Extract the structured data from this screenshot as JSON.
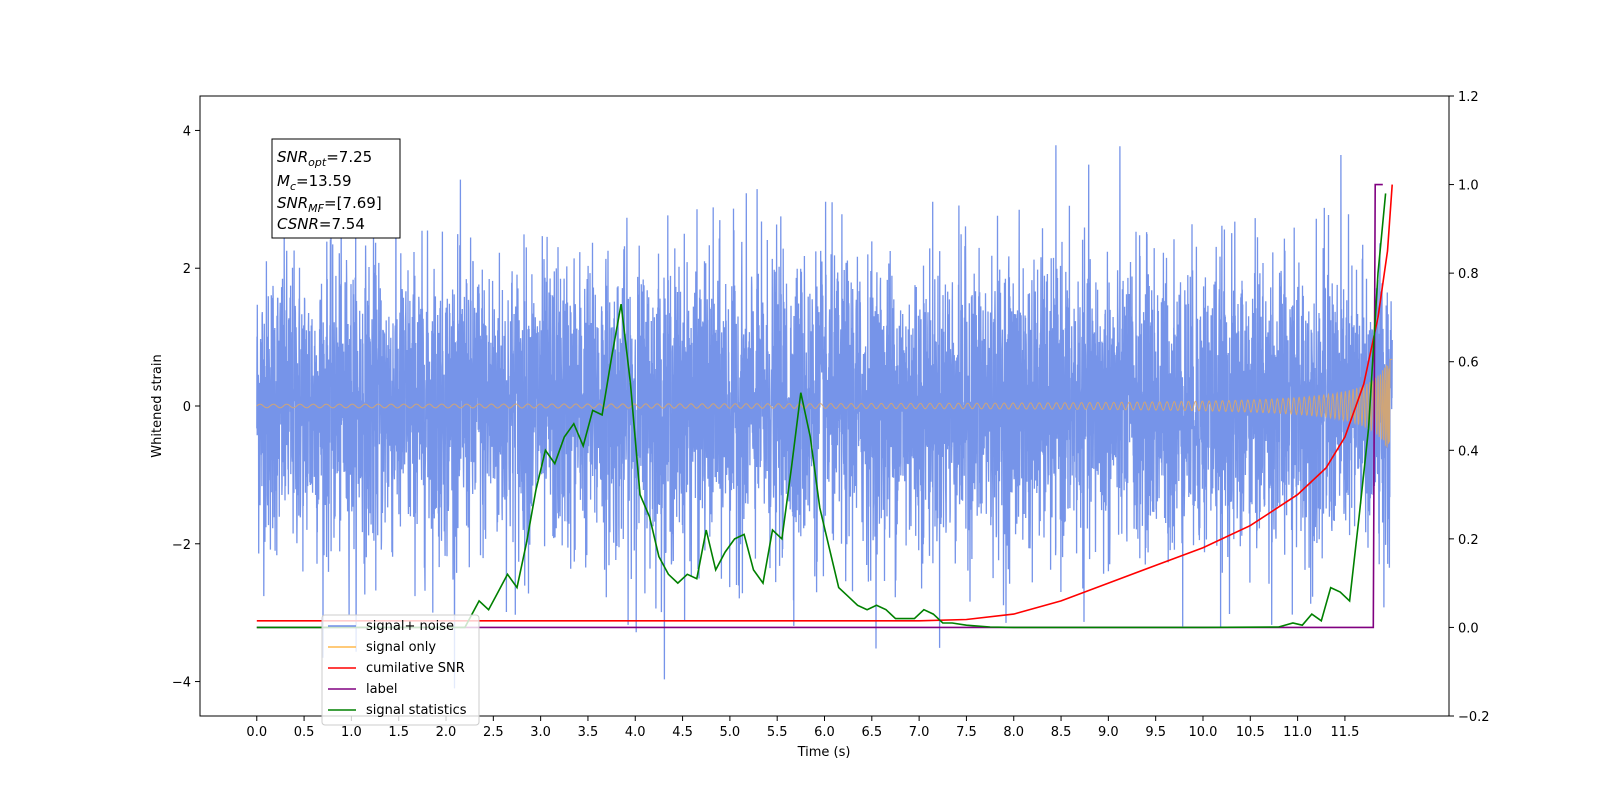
{
  "chart_data": {
    "type": "line",
    "xlabel": "Time (s)",
    "ylabel": "Whitened strain",
    "xlim": [
      -0.6,
      12.6
    ],
    "ylim_left": [
      -4.5,
      4.5
    ],
    "ylim_right": [
      -0.2,
      1.2
    ],
    "x_ticks": [
      "0.0",
      "0.5",
      "1.0",
      "1.5",
      "2.0",
      "2.5",
      "3.0",
      "3.5",
      "4.0",
      "4.5",
      "5.0",
      "5.5",
      "6.0",
      "6.5",
      "7.0",
      "7.5",
      "8.0",
      "8.5",
      "9.0",
      "9.5",
      "10.0",
      "10.5",
      "11.0",
      "11.5"
    ],
    "y_ticks_left": [
      "4",
      "2",
      "0",
      "−2",
      "−4"
    ],
    "y_ticks_right": [
      "1.2",
      "1.0",
      "0.8",
      "0.6",
      "0.4",
      "0.2",
      "0.0",
      "−0.2"
    ],
    "grid": false,
    "legend_position": "lower-left",
    "series": [
      {
        "name": "signal+ noise",
        "axis": "left",
        "color": "#6f8ee8",
        "description_range": [
          -3.5,
          3.5
        ]
      },
      {
        "name": "signal only",
        "axis": "left",
        "color": "#d9a66b"
      },
      {
        "name": "cumilative SNR",
        "axis": "right",
        "color": "#ff0000",
        "x": [
          0.0,
          1.0,
          2.0,
          3.0,
          4.0,
          5.0,
          6.0,
          7.0,
          7.5,
          8.0,
          8.5,
          9.0,
          9.5,
          10.0,
          10.5,
          11.0,
          11.3,
          11.5,
          11.7,
          11.85,
          11.95,
          12.0
        ],
        "y": [
          0.015,
          0.015,
          0.015,
          0.015,
          0.015,
          0.015,
          0.015,
          0.015,
          0.018,
          0.03,
          0.06,
          0.1,
          0.14,
          0.18,
          0.23,
          0.3,
          0.36,
          0.43,
          0.55,
          0.7,
          0.85,
          1.0
        ]
      },
      {
        "name": "label",
        "axis": "right",
        "color": "#800080",
        "x": [
          0.0,
          11.8,
          11.82,
          11.9
        ],
        "y": [
          0.0,
          0.0,
          1.0,
          1.0
        ]
      },
      {
        "name": "signal statistics",
        "axis": "right",
        "color": "#008000",
        "x": [
          0.0,
          2.2,
          2.35,
          2.45,
          2.55,
          2.65,
          2.75,
          2.85,
          2.95,
          3.05,
          3.15,
          3.25,
          3.35,
          3.45,
          3.55,
          3.65,
          3.75,
          3.85,
          3.95,
          4.05,
          4.15,
          4.25,
          4.35,
          4.45,
          4.55,
          4.65,
          4.75,
          4.85,
          4.95,
          5.05,
          5.15,
          5.25,
          5.35,
          5.45,
          5.55,
          5.65,
          5.75,
          5.85,
          5.95,
          6.05,
          6.15,
          6.25,
          6.35,
          6.45,
          6.55,
          6.65,
          6.75,
          6.85,
          6.95,
          7.05,
          7.15,
          7.25,
          7.35,
          7.5,
          7.75,
          8.0,
          9.0,
          10.0,
          10.8,
          10.95,
          11.05,
          11.15,
          11.25,
          11.35,
          11.45,
          11.55,
          11.65,
          11.75,
          11.85,
          11.93
        ],
        "y": [
          0.0,
          0.0,
          0.06,
          0.04,
          0.08,
          0.12,
          0.09,
          0.19,
          0.31,
          0.4,
          0.37,
          0.43,
          0.46,
          0.41,
          0.49,
          0.48,
          0.61,
          0.73,
          0.55,
          0.3,
          0.25,
          0.16,
          0.12,
          0.1,
          0.12,
          0.11,
          0.22,
          0.13,
          0.17,
          0.2,
          0.21,
          0.13,
          0.1,
          0.22,
          0.2,
          0.36,
          0.53,
          0.43,
          0.27,
          0.18,
          0.09,
          0.07,
          0.05,
          0.04,
          0.05,
          0.04,
          0.02,
          0.02,
          0.02,
          0.04,
          0.03,
          0.01,
          0.01,
          0.005,
          0.001,
          0.0,
          0.0,
          0.0,
          0.001,
          0.01,
          0.005,
          0.03,
          0.015,
          0.09,
          0.08,
          0.06,
          0.25,
          0.45,
          0.8,
          0.98
        ]
      }
    ]
  },
  "info_box": {
    "snr_opt_base": "SNR",
    "snr_opt_sub": "opt",
    "snr_opt_value": "=7.25",
    "mc_base": "M",
    "mc_sub": "c",
    "mc_value": "=13.59",
    "snr_mf_base": "SNR",
    "snr_mf_sub": "MF",
    "snr_mf_value": "=[7.69]",
    "csnr_base": "CSNR",
    "csnr_value": "=7.54"
  },
  "legend": [
    {
      "label": "signal+ noise",
      "color": "#6f8ee8"
    },
    {
      "label": "signal only",
      "color": "#ffb84d"
    },
    {
      "label": "cumilative SNR",
      "color": "#ff0000"
    },
    {
      "label": "label",
      "color": "#800080"
    },
    {
      "label": "signal statistics",
      "color": "#008000"
    }
  ]
}
